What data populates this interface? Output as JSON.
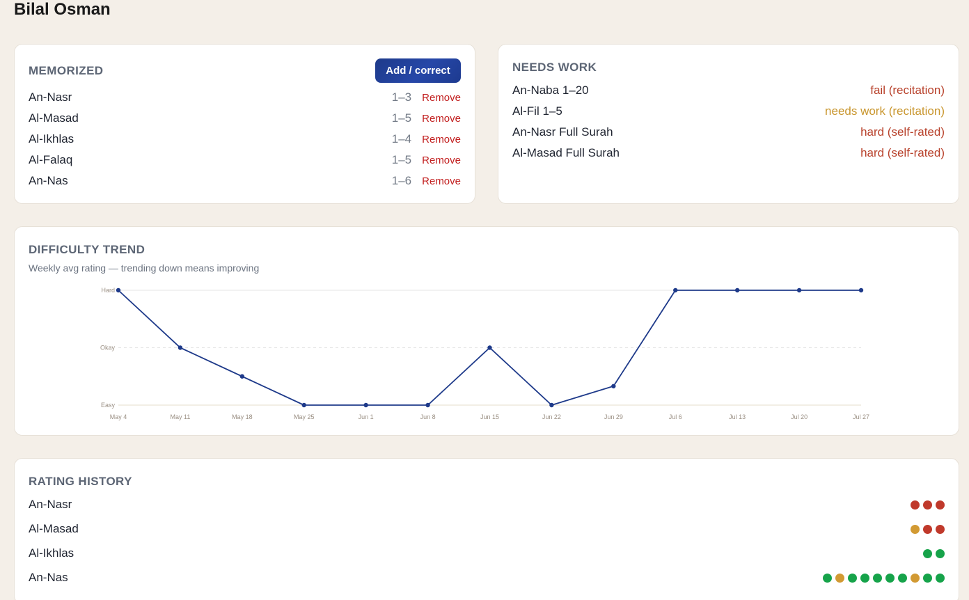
{
  "student_name": "Bilal Osman",
  "colors": {
    "fail": "#b8412b",
    "needs_work": "#c9962e",
    "hard": "#b8412b",
    "red_dot": "#c0392b",
    "amber_dot": "#d29a33",
    "green_dot": "#16a34a",
    "line": "#1e3a8a"
  },
  "memorized": {
    "title": "MEMORIZED",
    "add_button": "Add / correct",
    "remove_label": "Remove",
    "items": [
      {
        "name": "An-Nasr",
        "range": "1–3"
      },
      {
        "name": "Al-Masad",
        "range": "1–5"
      },
      {
        "name": "Al-Ikhlas",
        "range": "1–4"
      },
      {
        "name": "Al-Falaq",
        "range": "1–5"
      },
      {
        "name": "An-Nas",
        "range": "1–6"
      }
    ]
  },
  "needs_work": {
    "title": "NEEDS WORK",
    "items": [
      {
        "name": "An-Naba 1–20",
        "status": "fail (recitation)",
        "tone": "fail"
      },
      {
        "name": "Al-Fil 1–5",
        "status": "needs work (recitation)",
        "tone": "needs_work"
      },
      {
        "name": "An-Nasr Full Surah",
        "status": "hard (self-rated)",
        "tone": "hard"
      },
      {
        "name": "Al-Masad Full Surah",
        "status": "hard (self-rated)",
        "tone": "hard"
      }
    ]
  },
  "difficulty_trend": {
    "title": "DIFFICULTY TREND",
    "subtitle": "Weekly avg rating — trending down means improving"
  },
  "chart_data": {
    "type": "line",
    "categories": [
      "May 4",
      "May 11",
      "May 18",
      "May 25",
      "Jun 1",
      "Jun 8",
      "Jun 15",
      "Jun 22",
      "Jun 29",
      "Jul 6",
      "Jul 13",
      "Jul 20",
      "Jul 27"
    ],
    "y_labels": [
      "Easy",
      "Okay",
      "Hard"
    ],
    "ylim": [
      1,
      3
    ],
    "values": [
      3,
      2,
      1.5,
      1,
      1,
      1,
      2,
      1,
      1.33,
      3,
      3,
      3,
      3
    ],
    "title": "",
    "xlabel": "",
    "ylabel": "",
    "grid": true
  },
  "rating_history": {
    "title": "RATING HISTORY",
    "items": [
      {
        "name": "An-Nasr",
        "ratings": [
          "hard",
          "hard",
          "hard"
        ]
      },
      {
        "name": "Al-Masad",
        "ratings": [
          "okay",
          "hard",
          "hard"
        ]
      },
      {
        "name": "Al-Ikhlas",
        "ratings": [
          "easy",
          "easy"
        ]
      },
      {
        "name": "An-Nas",
        "ratings": [
          "easy",
          "okay",
          "easy",
          "easy",
          "easy",
          "easy",
          "easy",
          "okay",
          "easy",
          "easy"
        ]
      }
    ]
  }
}
